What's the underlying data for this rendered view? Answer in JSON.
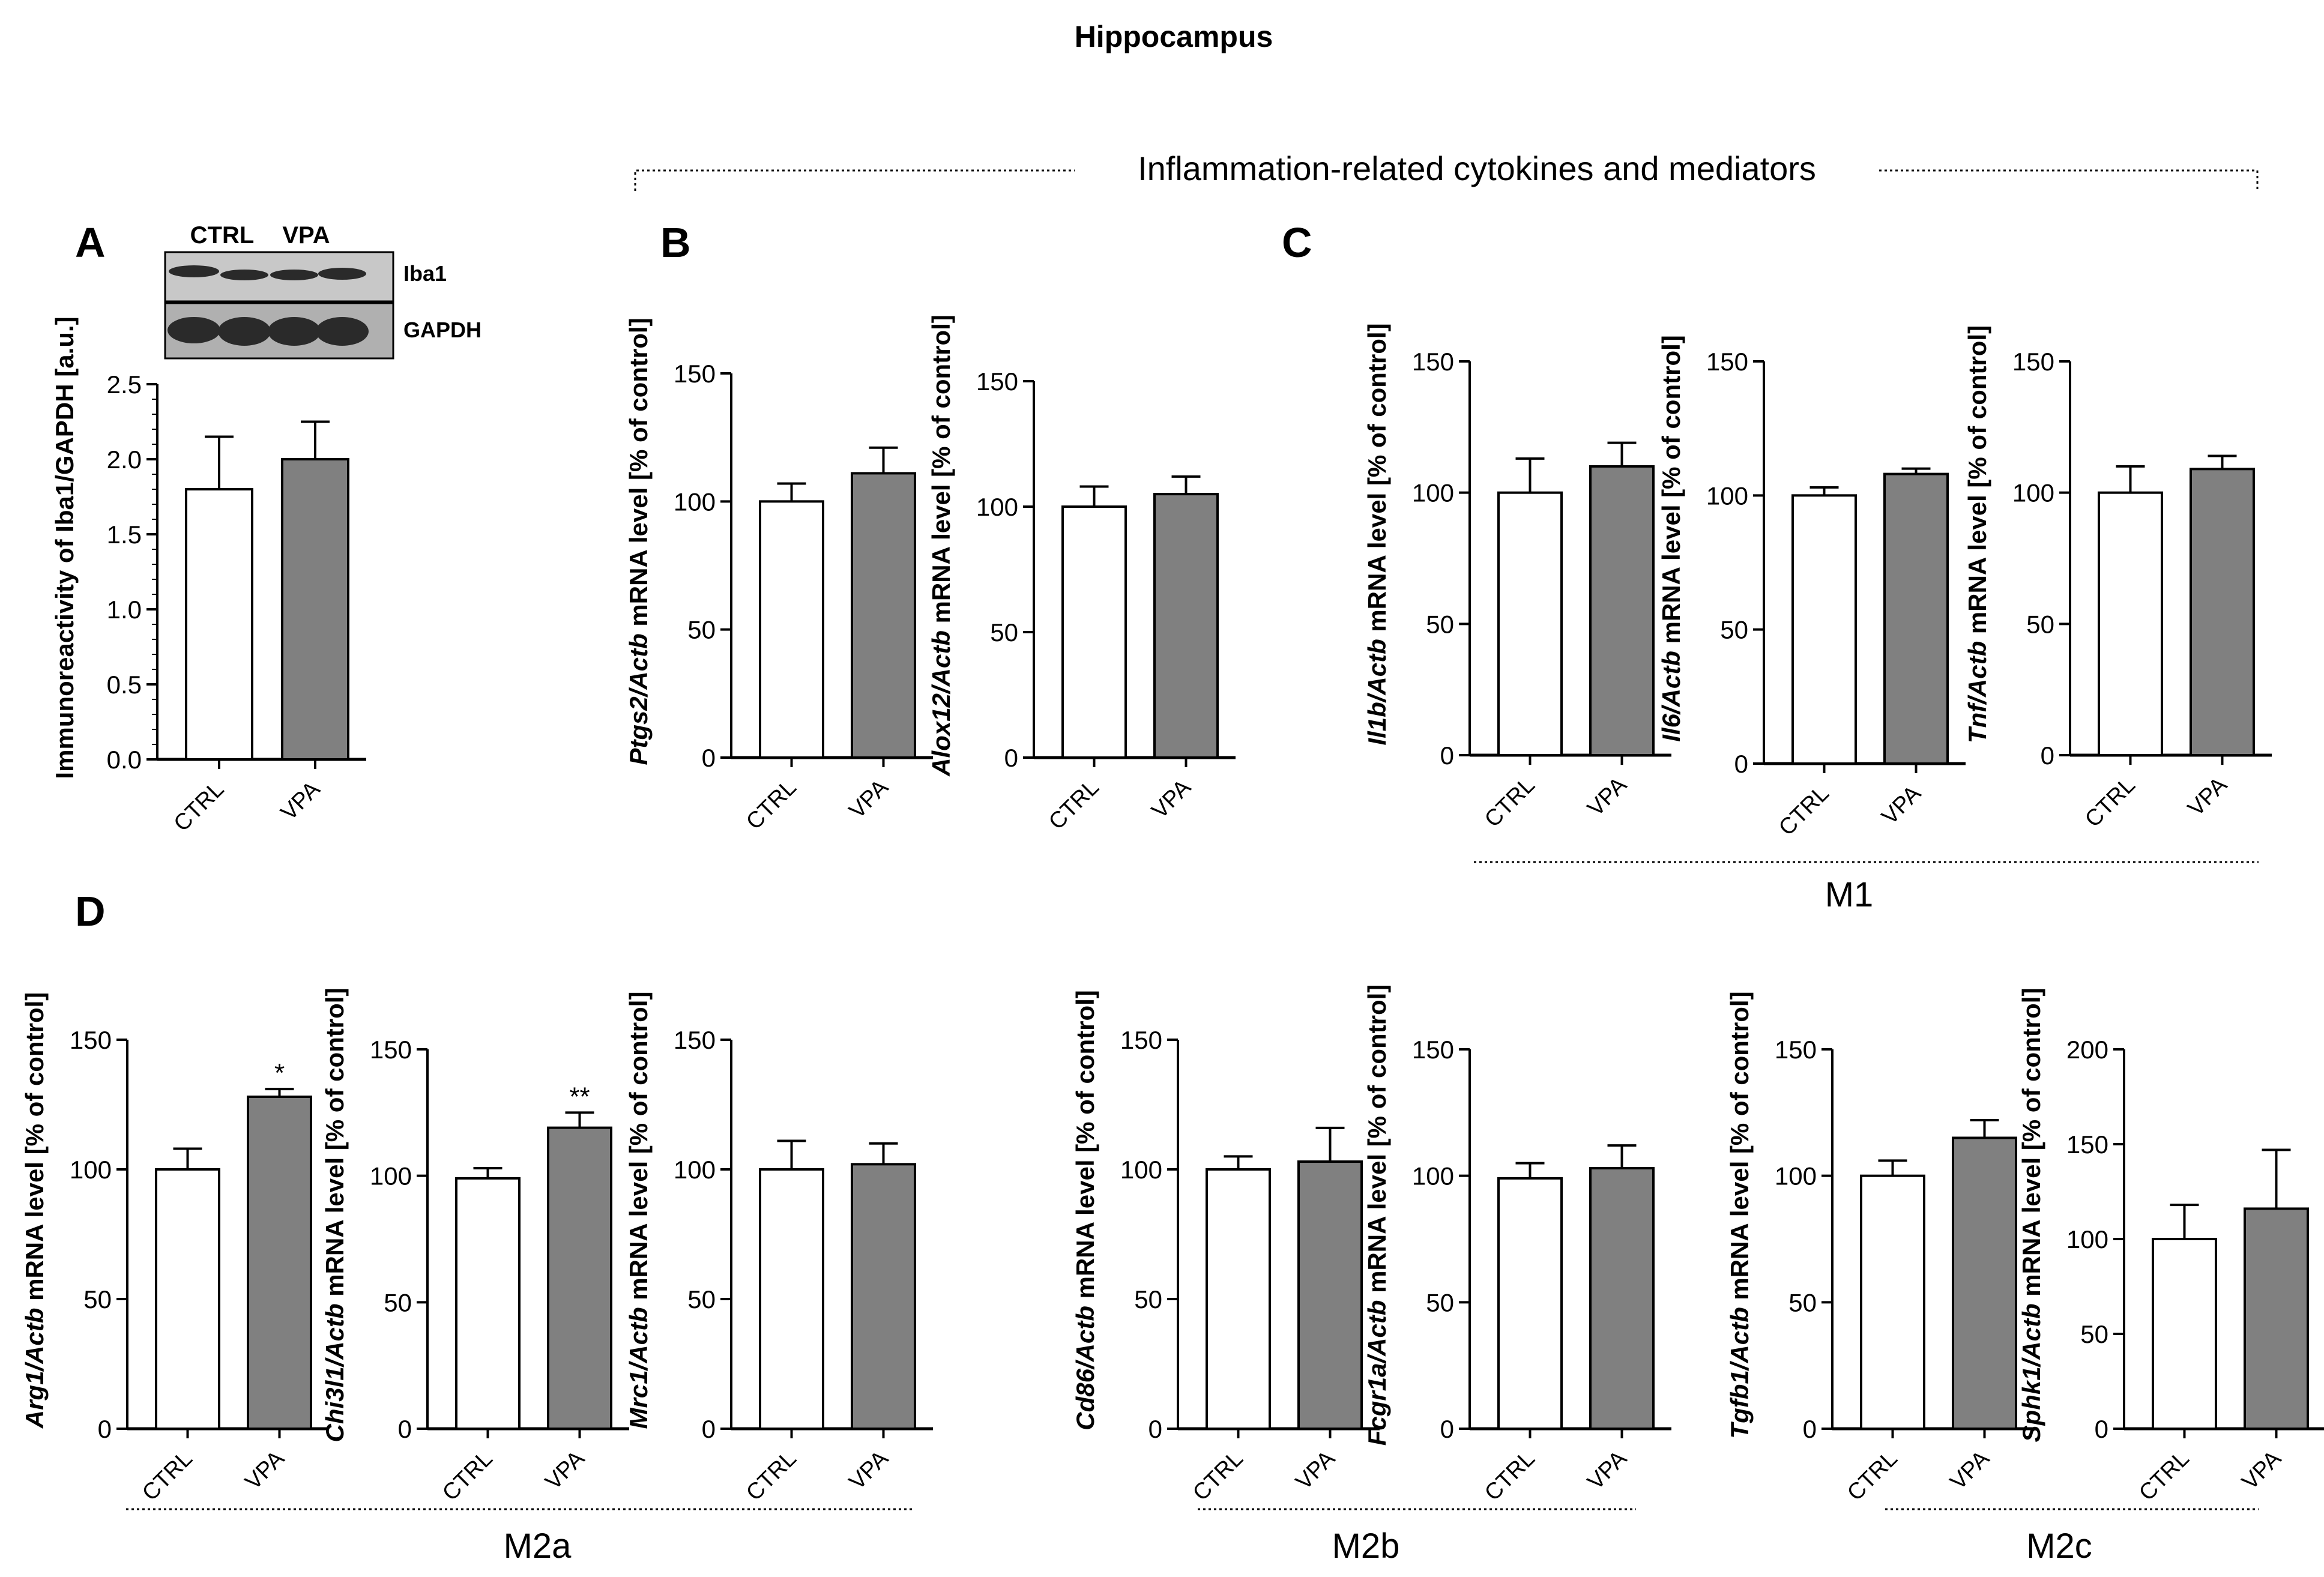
{
  "figure": {
    "title": "Hippocampus",
    "section_header": "Inflammation-related cytokines and mediators",
    "panel_letters": {
      "A": "A",
      "B": "B",
      "C": "C",
      "D": "D"
    },
    "group_labels": {
      "m1": "M1",
      "m2a": "M2a",
      "m2b": "M2b",
      "m2c": "M2c"
    },
    "blot": {
      "lane_labels": [
        "CTRL",
        "VPA"
      ],
      "band_labels": [
        "Iba1",
        "GAPDH"
      ]
    },
    "ylabel_suffix": " mRNA level [% of control]",
    "actb": "Actb"
  },
  "colors": {
    "ctrl_fill": "#ffffff",
    "vpa_fill": "#808080",
    "axis": "#000000"
  },
  "chart_data": [
    {
      "id": "iba1",
      "type": "bar",
      "categories": [
        "CTRL",
        "VPA"
      ],
      "values": [
        1.8,
        2.0
      ],
      "errors": [
        0.35,
        0.25
      ],
      "ylim": [
        0,
        2.5
      ],
      "yticks": [
        "0.0",
        "0.5",
        "1.0",
        "1.5",
        "2.0",
        "2.5"
      ],
      "ylabel": "Immunoreactivity of Iba1/GAPDH [a.u.]",
      "significance": [
        "",
        ""
      ]
    },
    {
      "id": "ptgs2",
      "type": "bar",
      "categories": [
        "CTRL",
        "VPA"
      ],
      "values": [
        100,
        111
      ],
      "errors": [
        7,
        10
      ],
      "ylim": [
        0,
        150
      ],
      "yticks": [
        "0",
        "50",
        "100",
        "150"
      ],
      "gene": "Ptgs2",
      "significance": [
        "",
        ""
      ]
    },
    {
      "id": "alox12",
      "type": "bar",
      "categories": [
        "CTRL",
        "VPA"
      ],
      "values": [
        100,
        105
      ],
      "errors": [
        8,
        7
      ],
      "ylim": [
        0,
        150
      ],
      "yticks": [
        "0",
        "50",
        "100",
        "150"
      ],
      "gene": "Alox12",
      "significance": [
        "",
        ""
      ]
    },
    {
      "id": "il1b",
      "type": "bar",
      "categories": [
        "CTRL",
        "VPA"
      ],
      "values": [
        100,
        110
      ],
      "errors": [
        13,
        9
      ],
      "ylim": [
        0,
        150
      ],
      "yticks": [
        "0",
        "50",
        "100",
        "150"
      ],
      "gene": "Il1b",
      "significance": [
        "",
        ""
      ]
    },
    {
      "id": "il6",
      "type": "bar",
      "categories": [
        "CTRL",
        "VPA"
      ],
      "values": [
        100,
        108
      ],
      "errors": [
        3,
        2
      ],
      "ylim": [
        0,
        150
      ],
      "yticks": [
        "0",
        "50",
        "100",
        "150"
      ],
      "gene": "Il6",
      "significance": [
        "",
        ""
      ]
    },
    {
      "id": "tnf",
      "type": "bar",
      "categories": [
        "CTRL",
        "VPA"
      ],
      "values": [
        100,
        109
      ],
      "errors": [
        10,
        5
      ],
      "ylim": [
        0,
        150
      ],
      "yticks": [
        "0",
        "50",
        "100",
        "150"
      ],
      "gene": "Tnf",
      "significance": [
        "",
        ""
      ]
    },
    {
      "id": "arg1",
      "type": "bar",
      "categories": [
        "CTRL",
        "VPA"
      ],
      "values": [
        100,
        128
      ],
      "errors": [
        8,
        3
      ],
      "ylim": [
        0,
        150
      ],
      "yticks": [
        "0",
        "50",
        "100",
        "150"
      ],
      "gene": "Arg1",
      "significance": [
        "",
        "*"
      ]
    },
    {
      "id": "chi3l1",
      "type": "bar",
      "categories": [
        "CTRL",
        "VPA"
      ],
      "values": [
        99,
        119
      ],
      "errors": [
        4,
        6
      ],
      "ylim": [
        0,
        150
      ],
      "yticks": [
        "0",
        "50",
        "100",
        "150"
      ],
      "gene": "Chi3l1",
      "significance": [
        "",
        "**"
      ]
    },
    {
      "id": "mrc1",
      "type": "bar",
      "categories": [
        "CTRL",
        "VPA"
      ],
      "values": [
        100,
        102
      ],
      "errors": [
        11,
        8
      ],
      "ylim": [
        0,
        150
      ],
      "yticks": [
        "0",
        "50",
        "100",
        "150"
      ],
      "gene": "Mrc1",
      "significance": [
        "",
        ""
      ]
    },
    {
      "id": "cd86",
      "type": "bar",
      "categories": [
        "CTRL",
        "VPA"
      ],
      "values": [
        100,
        103
      ],
      "errors": [
        5,
        13
      ],
      "ylim": [
        0,
        150
      ],
      "yticks": [
        "0",
        "50",
        "100",
        "150"
      ],
      "gene": "Cd86",
      "significance": [
        "",
        ""
      ]
    },
    {
      "id": "fcgr1a",
      "type": "bar",
      "categories": [
        "CTRL",
        "VPA"
      ],
      "values": [
        99,
        103
      ],
      "errors": [
        6,
        9
      ],
      "ylim": [
        0,
        150
      ],
      "yticks": [
        "0",
        "50",
        "100",
        "150"
      ],
      "gene": "Fcgr1a",
      "significance": [
        "",
        ""
      ]
    },
    {
      "id": "tgfb1",
      "type": "bar",
      "categories": [
        "CTRL",
        "VPA"
      ],
      "values": [
        100,
        115
      ],
      "errors": [
        6,
        7
      ],
      "ylim": [
        0,
        150
      ],
      "yticks": [
        "0",
        "50",
        "100",
        "150"
      ],
      "gene": "Tgfb1",
      "significance": [
        "",
        ""
      ]
    },
    {
      "id": "sphk1",
      "type": "bar",
      "categories": [
        "CTRL",
        "VPA"
      ],
      "values": [
        100,
        116
      ],
      "errors": [
        18,
        31
      ],
      "ylim": [
        0,
        200
      ],
      "yticks": [
        "0",
        "50",
        "100",
        "150",
        "200"
      ],
      "gene": "Sphk1",
      "significance": [
        "",
        ""
      ]
    }
  ]
}
